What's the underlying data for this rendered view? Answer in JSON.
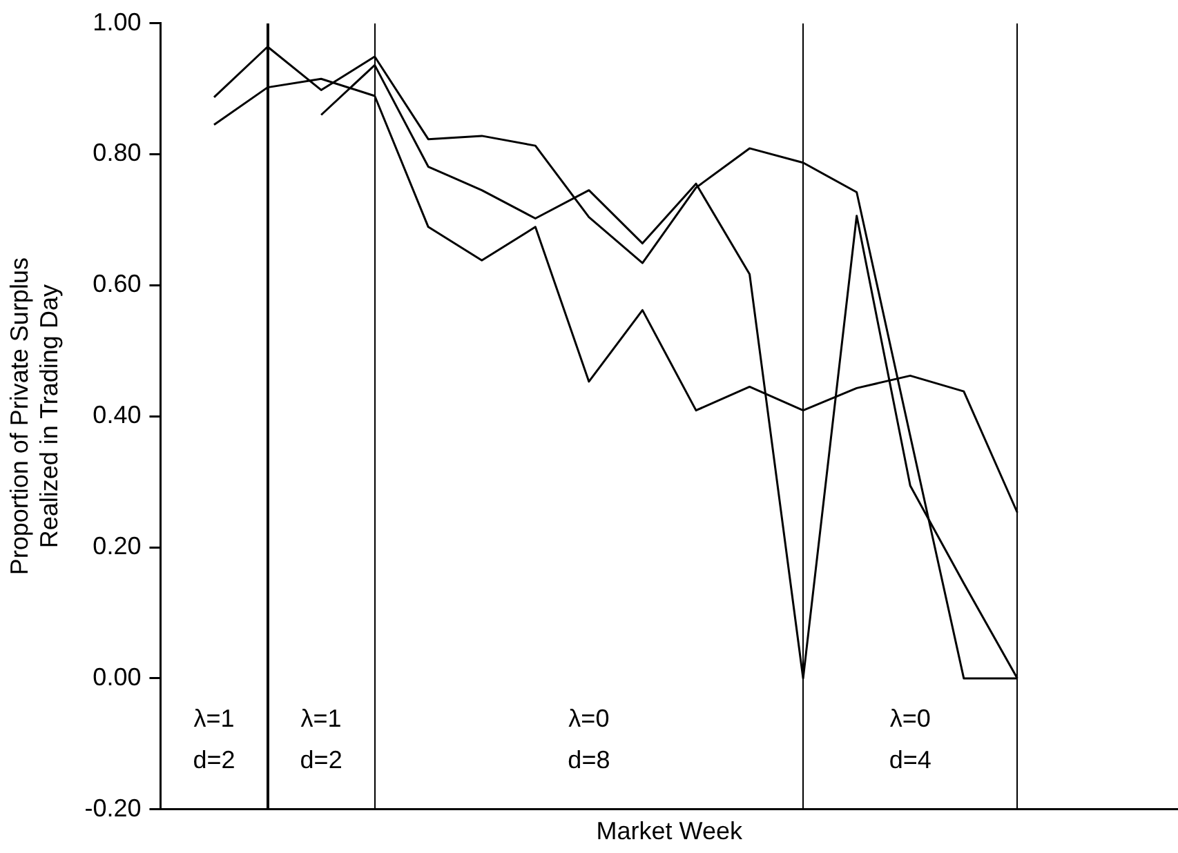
{
  "chart_data": {
    "type": "line",
    "xlabel": "Market Week",
    "ylabel": "Proportion of Private Surplus\nRealized in Trading Day",
    "categories": [
      null,
      null,
      null,
      null,
      null,
      null,
      null,
      null,
      null,
      null,
      null,
      null,
      null,
      null,
      null,
      null,
      null,
      null,
      null,
      null
    ],
    "ylim": [
      -0.2,
      1.0
    ],
    "yticks": [
      {
        "value": -0.2,
        "label": "-0.20"
      },
      {
        "value": 0,
        "label": "0.00"
      },
      {
        "value": 0.2,
        "label": "0.20"
      },
      {
        "value": 0.4,
        "label": "0.40"
      },
      {
        "value": 0.6,
        "label": "0.60"
      },
      {
        "value": 0.8,
        "label": "0.80"
      },
      {
        "value": 1.0,
        "label": "1.00"
      }
    ],
    "tick_labels": "y",
    "grid": false,
    "legend": false,
    "marker": "none",
    "line_style": "solid",
    "series": [
      {
        "color": "#000000",
        "values": [
          null,
          0.887,
          0.964,
          0.898,
          0.949,
          0.823,
          0.828,
          0.813,
          0.704,
          0.634,
          0.749,
          0.809,
          0.787,
          0.742,
          0.37,
          0.0,
          0.0,
          null,
          null,
          null
        ]
      },
      {
        "color": "#000000",
        "values": [
          null,
          0.845,
          0.902,
          0.915,
          0.889,
          0.689,
          0.638,
          0.689,
          0.453,
          0.562,
          0.409,
          0.445,
          0.409,
          0.443,
          0.462,
          0.438,
          0.253,
          null,
          null,
          null
        ]
      },
      {
        "color": "#000000",
        "values": [
          null,
          null,
          null,
          0.86,
          0.936,
          0.781,
          0.745,
          0.702,
          0.745,
          0.664,
          0.755,
          0.617,
          0.0,
          0.706,
          0.294,
          0.145,
          0.0,
          null,
          null,
          null
        ]
      }
    ],
    "annotations": [
      "λ=1\nd=2",
      "λ=1\nd=2",
      "λ=0\nd=8",
      "λ=0\nd=4"
    ]
  }
}
